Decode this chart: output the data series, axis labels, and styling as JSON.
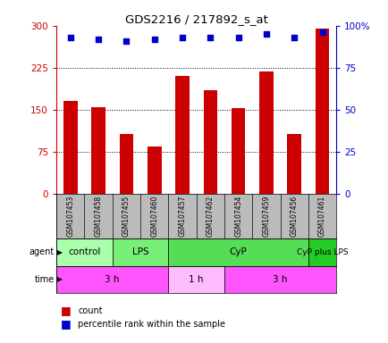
{
  "title": "GDS2216 / 217892_s_at",
  "samples": [
    "GSM107453",
    "GSM107458",
    "GSM107455",
    "GSM107460",
    "GSM107457",
    "GSM107462",
    "GSM107454",
    "GSM107459",
    "GSM107456",
    "GSM107461"
  ],
  "counts": [
    165,
    154,
    107,
    85,
    210,
    185,
    153,
    218,
    107,
    295
  ],
  "percentiles": [
    93,
    92,
    91,
    92,
    93,
    93,
    93,
    95,
    93,
    96
  ],
  "ylim_left": [
    0,
    300
  ],
  "ylim_right": [
    0,
    100
  ],
  "yticks_left": [
    0,
    75,
    150,
    225,
    300
  ],
  "yticks_right": [
    0,
    25,
    50,
    75,
    100
  ],
  "ytick_labels_left": [
    "0",
    "75",
    "150",
    "225",
    "300"
  ],
  "ytick_labels_right": [
    "0",
    "25",
    "50",
    "75",
    "100%"
  ],
  "bar_color": "#cc0000",
  "dot_color": "#0000cc",
  "agent_groups": [
    {
      "label": "control",
      "start": 0,
      "end": 2,
      "color": "#aaffaa"
    },
    {
      "label": "LPS",
      "start": 2,
      "end": 4,
      "color": "#77ee77"
    },
    {
      "label": "CyP",
      "start": 4,
      "end": 9,
      "color": "#55dd55"
    },
    {
      "label": "CyP plus LPS",
      "start": 9,
      "end": 10,
      "color": "#22cc22"
    }
  ],
  "time_groups": [
    {
      "label": "3 h",
      "start": 0,
      "end": 4,
      "color": "#ff55ff"
    },
    {
      "label": "1 h",
      "start": 4,
      "end": 6,
      "color": "#ffbbff"
    },
    {
      "label": "3 h",
      "start": 6,
      "end": 10,
      "color": "#ff55ff"
    }
  ],
  "bg_color": "#ffffff",
  "sample_row_color": "#bbbbbb",
  "grid_lines": [
    75,
    150,
    225
  ],
  "bar_width": 0.5
}
